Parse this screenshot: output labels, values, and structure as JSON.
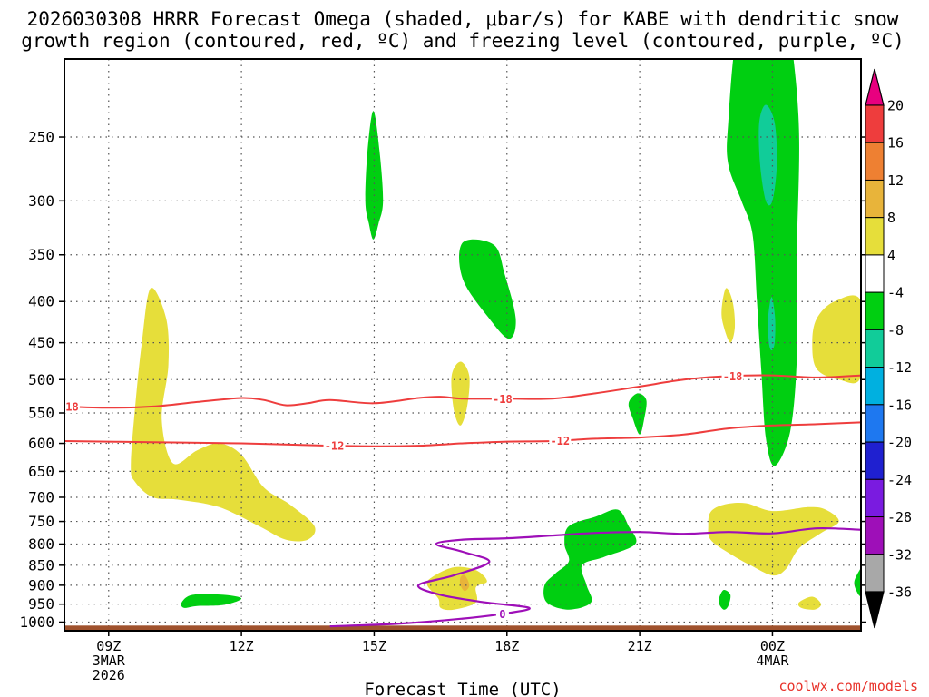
{
  "chart_data": {
    "type": "heatmap",
    "title_line1": "2026030308 HRRR Forecast Omega (shaded, μbar/s) for KABE with dendritic snow",
    "title_line2": "growth region (contoured, red, ºC) and freezing level (contoured, purple, ºC)",
    "xlabel": "Forecast Time (UTC)",
    "credit": "coolwx.com/models",
    "x_range_hours": [
      8,
      26
    ],
    "y_range_hPa": [
      1025,
      200
    ],
    "y_ticks": [
      250,
      300,
      350,
      400,
      450,
      500,
      550,
      600,
      650,
      700,
      750,
      800,
      850,
      900,
      950,
      1000
    ],
    "x_ticks": [
      {
        "hour": 9,
        "lines": [
          "09Z",
          "3MAR",
          "2026"
        ]
      },
      {
        "hour": 12,
        "lines": [
          "12Z"
        ]
      },
      {
        "hour": 15,
        "lines": [
          "15Z"
        ]
      },
      {
        "hour": 18,
        "lines": [
          "18Z"
        ]
      },
      {
        "hour": 21,
        "lines": [
          "21Z"
        ]
      },
      {
        "hour": 24,
        "lines": [
          "00Z",
          "4MAR"
        ]
      }
    ],
    "colorbar": {
      "ticks": [
        "20",
        "16",
        "12",
        "8",
        "4",
        "-4",
        "-8",
        "-12",
        "-16",
        "-20",
        "-24",
        "-28",
        "-32",
        "-36"
      ],
      "colors": [
        "#e8007f",
        "#ee3d3d",
        "#ee8032",
        "#e8b43a",
        "#e6de3a",
        "#ffffff",
        "#00cf11",
        "#11cc99",
        "#00b0e0",
        "#1e78f0",
        "#1f20d0",
        "#7a1be0",
        "#9e0fb8",
        "#a8a8a8",
        "#000000"
      ]
    },
    "shaded_regions": [
      {
        "name": "yellow-left",
        "color": "#e6de3a",
        "points": [
          [
            9.5,
            640
          ],
          [
            9.6,
            540
          ],
          [
            9.75,
            450
          ],
          [
            9.95,
            385
          ],
          [
            10.3,
            420
          ],
          [
            10.35,
            480
          ],
          [
            10.2,
            560
          ],
          [
            10.45,
            635
          ],
          [
            11.0,
            612
          ],
          [
            11.5,
            600
          ],
          [
            12.0,
            620
          ],
          [
            12.5,
            680
          ],
          [
            13.1,
            715
          ],
          [
            13.65,
            760
          ],
          [
            13.5,
            790
          ],
          [
            13.0,
            790
          ],
          [
            12.4,
            760
          ],
          [
            11.5,
            720
          ],
          [
            10.6,
            705
          ],
          [
            10.0,
            700
          ],
          [
            9.6,
            670
          ]
        ]
      },
      {
        "name": "green-1030",
        "color": "#00cf11",
        "points": [
          [
            10.65,
            945
          ],
          [
            10.9,
            925
          ],
          [
            11.6,
            925
          ],
          [
            12.0,
            935
          ],
          [
            11.6,
            952
          ],
          [
            11.0,
            955
          ],
          [
            10.7,
            960
          ]
        ]
      },
      {
        "name": "green-15",
        "color": "#00cf11",
        "points": [
          [
            14.8,
            300
          ],
          [
            14.85,
            260
          ],
          [
            14.98,
            232
          ],
          [
            15.12,
            260
          ],
          [
            15.2,
            300
          ],
          [
            15.1,
            320
          ],
          [
            14.98,
            335
          ],
          [
            14.88,
            320
          ]
        ]
      },
      {
        "name": "green-18",
        "color": "#00cf11",
        "points": [
          [
            17.0,
            338
          ],
          [
            17.7,
            340
          ],
          [
            17.95,
            370
          ],
          [
            18.2,
            420
          ],
          [
            18.05,
            445
          ],
          [
            17.6,
            420
          ],
          [
            17.0,
            375
          ]
        ]
      },
      {
        "name": "yellow-1700-500",
        "color": "#e6de3a",
        "points": [
          [
            16.75,
            495
          ],
          [
            16.95,
            475
          ],
          [
            17.15,
            495
          ],
          [
            17.1,
            540
          ],
          [
            16.95,
            570
          ],
          [
            16.8,
            545
          ]
        ]
      },
      {
        "name": "yellow-1700-900",
        "color": "#e6de3a",
        "points": [
          [
            16.3,
            880
          ],
          [
            16.8,
            855
          ],
          [
            17.3,
            862
          ],
          [
            17.55,
            890
          ],
          [
            17.3,
            905
          ],
          [
            17.3,
            945
          ],
          [
            16.8,
            965
          ],
          [
            16.5,
            960
          ],
          [
            16.45,
            935
          ],
          [
            16.2,
            900
          ]
        ]
      },
      {
        "name": "orange-1700",
        "color": "#e8b43a",
        "points": [
          [
            16.95,
            880
          ],
          [
            17.05,
            875
          ],
          [
            17.15,
            900
          ],
          [
            17.05,
            915
          ],
          [
            16.95,
            900
          ]
        ]
      },
      {
        "name": "green-1930",
        "color": "#00cf11",
        "points": [
          [
            18.85,
            900
          ],
          [
            19.1,
            870
          ],
          [
            19.4,
            840
          ],
          [
            19.3,
            800
          ],
          [
            19.4,
            760
          ],
          [
            20.0,
            740
          ],
          [
            20.5,
            725
          ],
          [
            20.75,
            760
          ],
          [
            20.9,
            800
          ],
          [
            20.2,
            830
          ],
          [
            19.7,
            850
          ],
          [
            19.8,
            900
          ],
          [
            19.9,
            945
          ],
          [
            19.4,
            965
          ],
          [
            18.9,
            945
          ]
        ]
      },
      {
        "name": "green-2100",
        "color": "#00cf11",
        "points": [
          [
            20.75,
            535
          ],
          [
            20.95,
            520
          ],
          [
            21.15,
            530
          ],
          [
            21.1,
            560
          ],
          [
            21.0,
            585
          ],
          [
            20.85,
            560
          ]
        ]
      },
      {
        "name": "yellow-2300-400",
        "color": "#e6de3a",
        "points": [
          [
            22.85,
            410
          ],
          [
            22.95,
            385
          ],
          [
            23.1,
            400
          ],
          [
            23.15,
            430
          ],
          [
            23.05,
            450
          ],
          [
            22.9,
            430
          ]
        ]
      },
      {
        "name": "green-00z",
        "color": "#00cf11",
        "points": [
          [
            23.0,
            240
          ],
          [
            23.2,
            185
          ],
          [
            23.65,
            160
          ],
          [
            23.95,
            130
          ],
          [
            24.05,
            140
          ],
          [
            24.4,
            185
          ],
          [
            24.6,
            245
          ],
          [
            24.55,
            350
          ],
          [
            24.55,
            470
          ],
          [
            24.4,
            580
          ],
          [
            24.05,
            640
          ],
          [
            23.85,
            590
          ],
          [
            23.75,
            490
          ],
          [
            23.65,
            400
          ],
          [
            23.55,
            330
          ],
          [
            23.3,
            300
          ],
          [
            23.0,
            270
          ]
        ]
      },
      {
        "name": "teal-00z-upper",
        "color": "#11cc99",
        "points": [
          [
            23.7,
            240
          ],
          [
            23.85,
            228
          ],
          [
            24.05,
            240
          ],
          [
            24.1,
            270
          ],
          [
            24.0,
            300
          ],
          [
            23.85,
            300
          ],
          [
            23.72,
            270
          ]
        ]
      },
      {
        "name": "teal-00z-lower",
        "color": "#11cc99",
        "points": [
          [
            23.9,
            420
          ],
          [
            23.98,
            395
          ],
          [
            24.06,
            420
          ],
          [
            24.05,
            450
          ],
          [
            23.98,
            460
          ],
          [
            23.92,
            450
          ]
        ]
      },
      {
        "name": "yellow-right-upper",
        "color": "#e6de3a",
        "points": [
          [
            25.0,
            420
          ],
          [
            25.4,
            400
          ],
          [
            26.0,
            400
          ],
          [
            26.0,
            495
          ],
          [
            25.5,
            500
          ],
          [
            25.0,
            485
          ],
          [
            24.9,
            450
          ]
        ]
      },
      {
        "name": "yellow-right-lower",
        "color": "#e6de3a",
        "points": [
          [
            22.6,
            730
          ],
          [
            22.9,
            715
          ],
          [
            23.4,
            712
          ],
          [
            24.0,
            728
          ],
          [
            24.8,
            720
          ],
          [
            25.2,
            725
          ],
          [
            25.5,
            750
          ],
          [
            25.1,
            775
          ],
          [
            24.6,
            810
          ],
          [
            24.3,
            860
          ],
          [
            24.0,
            875
          ],
          [
            23.5,
            850
          ],
          [
            23.0,
            820
          ],
          [
            22.6,
            790
          ],
          [
            22.55,
            760
          ]
        ]
      },
      {
        "name": "green-2250-950",
        "color": "#00cf11",
        "points": [
          [
            22.8,
            932
          ],
          [
            22.9,
            912
          ],
          [
            23.05,
            925
          ],
          [
            23.0,
            955
          ],
          [
            22.9,
            965
          ],
          [
            22.8,
            950
          ]
        ]
      },
      {
        "name": "yellow-2530-950",
        "color": "#e6de3a",
        "points": [
          [
            24.6,
            945
          ],
          [
            24.9,
            930
          ],
          [
            25.1,
            950
          ],
          [
            24.95,
            965
          ],
          [
            24.65,
            960
          ]
        ]
      },
      {
        "name": "green-right-edge",
        "color": "#00cf11",
        "points": [
          [
            25.85,
            890
          ],
          [
            25.98,
            860
          ],
          [
            26.0,
            860
          ],
          [
            26.0,
            925
          ],
          [
            25.9,
            915
          ]
        ]
      }
    ],
    "red_contours": [
      {
        "label": "-18",
        "label_hour": 17.9,
        "points": [
          [
            8,
            540
          ],
          [
            9.0,
            542
          ],
          [
            10.0,
            540
          ],
          [
            11.0,
            533
          ],
          [
            12.0,
            527
          ],
          [
            12.5,
            530
          ],
          [
            13.0,
            538
          ],
          [
            13.5,
            535
          ],
          [
            14.0,
            530
          ],
          [
            15.0,
            535
          ],
          [
            16.0,
            527
          ],
          [
            16.5,
            525
          ],
          [
            17.0,
            528
          ],
          [
            18.0,
            528
          ],
          [
            19.0,
            528
          ],
          [
            20.0,
            520
          ],
          [
            21.0,
            510
          ],
          [
            22.0,
            500
          ],
          [
            23.0,
            495
          ],
          [
            24.0,
            494
          ],
          [
            25.0,
            497
          ],
          [
            26.0,
            494
          ]
        ]
      },
      {
        "label": "-18",
        "label_hour": 8.1,
        "points": []
      },
      {
        "label": "-18",
        "label_hour": 23.1,
        "points": []
      },
      {
        "label": "-12",
        "label_hour": 14.1,
        "points": [
          [
            8,
            596
          ],
          [
            10.0,
            598
          ],
          [
            12.0,
            600
          ],
          [
            14.0,
            604
          ],
          [
            15.0,
            605
          ],
          [
            16.0,
            604
          ],
          [
            17.0,
            600
          ],
          [
            18.0,
            597
          ],
          [
            19.0,
            596
          ],
          [
            20.0,
            592
          ],
          [
            21.0,
            590
          ],
          [
            22.0,
            585
          ],
          [
            23.0,
            575
          ],
          [
            24.0,
            570
          ],
          [
            25.0,
            568
          ],
          [
            26.0,
            565
          ]
        ]
      },
      {
        "label": "-12",
        "label_hour": 19.2,
        "points": []
      }
    ],
    "purple_contour": {
      "label": "0",
      "label_hour": 17.9,
      "points": [
        [
          14.0,
          1012
        ],
        [
          15.5,
          1005
        ],
        [
          17.0,
          990
        ],
        [
          18.0,
          975
        ],
        [
          18.5,
          960
        ],
        [
          17.5,
          945
        ],
        [
          16.5,
          925
        ],
        [
          16.0,
          900
        ],
        [
          16.8,
          875
        ],
        [
          17.6,
          842
        ],
        [
          17.0,
          818
        ],
        [
          16.4,
          800
        ],
        [
          17.0,
          790
        ],
        [
          18.0,
          787
        ],
        [
          19.0,
          781
        ],
        [
          20.0,
          775
        ],
        [
          21.0,
          773
        ],
        [
          22.0,
          777
        ],
        [
          23.0,
          773
        ],
        [
          24.0,
          776
        ],
        [
          25.0,
          765
        ],
        [
          26.0,
          768
        ]
      ]
    }
  }
}
